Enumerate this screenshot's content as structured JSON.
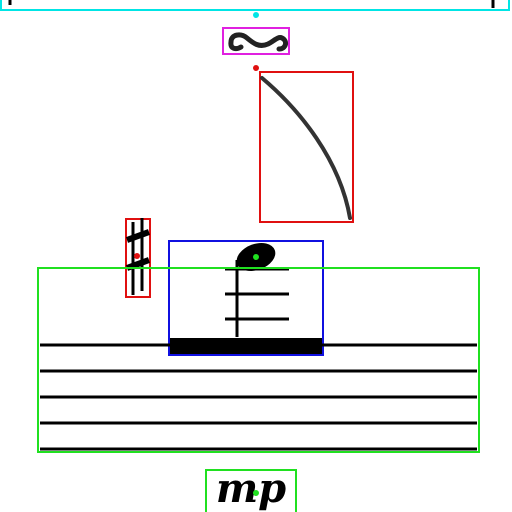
{
  "score": {
    "dynamic_marking": "mp",
    "ornament": "turn-icon",
    "accidental": "sharp-icon",
    "slur": "slur-curve",
    "staff_lines": 5,
    "ledger_lines": 3
  },
  "annotations": {
    "colors": {
      "system": "#00e5e5",
      "ornament": "#e020e0",
      "slur": "#e01010",
      "accidental": "#e01010",
      "notehead": "#1010e0",
      "staff": "#20e020",
      "dynamic": "#20e020"
    }
  }
}
